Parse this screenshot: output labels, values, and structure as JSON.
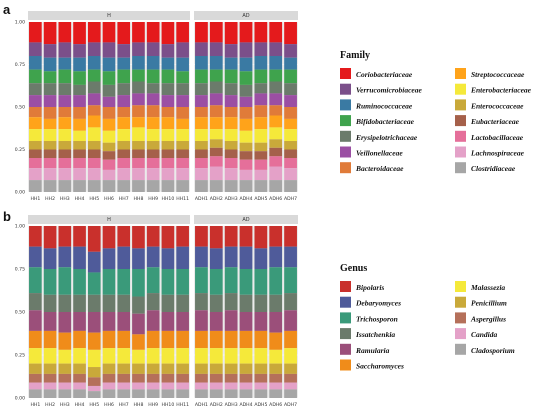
{
  "figure": {
    "panel_a": "a",
    "panel_b": "b"
  },
  "chart_data": [
    {
      "type": "bar",
      "stacked": true,
      "panel": "a",
      "facets": [
        "H",
        "AD"
      ],
      "categories": [
        "HH1",
        "HH2",
        "HH3",
        "HH4",
        "HH5",
        "HH6",
        "HH7",
        "HH8",
        "HH9",
        "HH10",
        "HH11",
        "ADH1",
        "ADH2",
        "ADH3",
        "ADH4",
        "ADH5",
        "ADH6",
        "ADH7"
      ],
      "facet_of": [
        "H",
        "H",
        "H",
        "H",
        "H",
        "H",
        "H",
        "H",
        "H",
        "H",
        "H",
        "AD",
        "AD",
        "AD",
        "AD",
        "AD",
        "AD",
        "AD"
      ],
      "ylim": [
        0,
        1
      ],
      "yticks": [
        "0.00",
        "0.25",
        "0.50",
        "0.75",
        "1.00"
      ],
      "legend_title": "Family",
      "legend_position": "right",
      "series": [
        {
          "name": "Coriobacteriaceae",
          "color": "#e41a1c",
          "values": [
            0.12,
            0.13,
            0.12,
            0.13,
            0.12,
            0.12,
            0.13,
            0.12,
            0.12,
            0.13,
            0.12,
            0.12,
            0.12,
            0.13,
            0.12,
            0.12,
            0.12,
            0.13
          ]
        },
        {
          "name": "Verrucomicrobiaceae",
          "color": "#7b4f8a",
          "values": [
            0.08,
            0.08,
            0.09,
            0.08,
            0.08,
            0.09,
            0.08,
            0.08,
            0.08,
            0.08,
            0.09,
            0.08,
            0.08,
            0.08,
            0.09,
            0.08,
            0.08,
            0.08
          ]
        },
        {
          "name": "Ruminococcaceae",
          "color": "#3a7aa3",
          "values": [
            0.08,
            0.08,
            0.07,
            0.08,
            0.08,
            0.08,
            0.07,
            0.08,
            0.08,
            0.07,
            0.08,
            0.08,
            0.08,
            0.07,
            0.08,
            0.08,
            0.08,
            0.07
          ]
        },
        {
          "name": "Bifidobacteriaceae",
          "color": "#3fa34d",
          "values": [
            0.08,
            0.07,
            0.08,
            0.08,
            0.07,
            0.08,
            0.08,
            0.07,
            0.08,
            0.08,
            0.07,
            0.08,
            0.07,
            0.08,
            0.08,
            0.08,
            0.07,
            0.08
          ]
        },
        {
          "name": "Erysipelotrichaceae",
          "color": "#6b7b6b",
          "values": [
            0.07,
            0.07,
            0.07,
            0.06,
            0.07,
            0.07,
            0.07,
            0.07,
            0.06,
            0.07,
            0.07,
            0.07,
            0.07,
            0.07,
            0.07,
            0.06,
            0.07,
            0.07
          ]
        },
        {
          "name": "Veillonellaceae",
          "color": "#9b4fa3",
          "values": [
            0.07,
            0.07,
            0.07,
            0.07,
            0.07,
            0.06,
            0.07,
            0.07,
            0.07,
            0.07,
            0.07,
            0.07,
            0.07,
            0.07,
            0.06,
            0.07,
            0.07,
            0.07
          ]
        },
        {
          "name": "Bacteroidaceae",
          "color": "#e07b39",
          "values": [
            0.06,
            0.07,
            0.06,
            0.07,
            0.06,
            0.07,
            0.06,
            0.07,
            0.07,
            0.06,
            0.07,
            0.06,
            0.07,
            0.06,
            0.07,
            0.07,
            0.06,
            0.07
          ]
        },
        {
          "name": "Streptococcaceae",
          "color": "#ffa31a",
          "values": [
            0.07,
            0.06,
            0.07,
            0.07,
            0.07,
            0.07,
            0.07,
            0.06,
            0.07,
            0.07,
            0.06,
            0.07,
            0.07,
            0.07,
            0.07,
            0.07,
            0.07,
            0.06
          ]
        },
        {
          "name": "Enterobacteriaceae",
          "color": "#f5e93a",
          "values": [
            0.07,
            0.07,
            0.07,
            0.06,
            0.08,
            0.07,
            0.07,
            0.08,
            0.07,
            0.07,
            0.07,
            0.07,
            0.06,
            0.07,
            0.07,
            0.08,
            0.07,
            0.07
          ]
        },
        {
          "name": "Enterococcaceae",
          "color": "#c9a93a",
          "values": [
            0.05,
            0.05,
            0.05,
            0.05,
            0.05,
            0.05,
            0.05,
            0.05,
            0.05,
            0.05,
            0.05,
            0.05,
            0.05,
            0.05,
            0.05,
            0.05,
            0.05,
            0.05
          ]
        },
        {
          "name": "Eubacteriaceae",
          "color": "#a5604a",
          "values": [
            0.05,
            0.05,
            0.05,
            0.05,
            0.05,
            0.05,
            0.05,
            0.05,
            0.05,
            0.05,
            0.05,
            0.05,
            0.05,
            0.05,
            0.05,
            0.05,
            0.05,
            0.05
          ]
        },
        {
          "name": "Lactobacillaceae",
          "color": "#e56f9a",
          "values": [
            0.06,
            0.06,
            0.06,
            0.06,
            0.06,
            0.06,
            0.06,
            0.06,
            0.06,
            0.06,
            0.06,
            0.06,
            0.06,
            0.06,
            0.06,
            0.06,
            0.06,
            0.06
          ]
        },
        {
          "name": "Lachnospiraceae",
          "color": "#e4a1c8",
          "values": [
            0.07,
            0.07,
            0.07,
            0.07,
            0.07,
            0.06,
            0.07,
            0.07,
            0.07,
            0.07,
            0.07,
            0.07,
            0.08,
            0.07,
            0.06,
            0.06,
            0.08,
            0.07
          ]
        },
        {
          "name": "Clostridiaceae",
          "color": "#a6a6a6",
          "values": [
            0.07,
            0.07,
            0.07,
            0.07,
            0.07,
            0.07,
            0.07,
            0.07,
            0.07,
            0.07,
            0.07,
            0.07,
            0.07,
            0.07,
            0.07,
            0.07,
            0.07,
            0.07
          ]
        }
      ]
    },
    {
      "type": "bar",
      "stacked": true,
      "panel": "b",
      "facets": [
        "H",
        "AD"
      ],
      "categories": [
        "HH1",
        "HH2",
        "HH3",
        "HH4",
        "HH5",
        "HH6",
        "HH7",
        "HH8",
        "HH9",
        "HH10",
        "HH11",
        "ADH1",
        "ADH2",
        "ADH3",
        "ADH4",
        "ADH5",
        "ADH6",
        "ADH7"
      ],
      "facet_of": [
        "H",
        "H",
        "H",
        "H",
        "H",
        "H",
        "H",
        "H",
        "H",
        "H",
        "H",
        "AD",
        "AD",
        "AD",
        "AD",
        "AD",
        "AD",
        "AD"
      ],
      "ylim": [
        0,
        1
      ],
      "yticks": [
        "0.00",
        "0.25",
        "0.50",
        "0.75",
        "1.00"
      ],
      "legend_title": "Genus",
      "legend_position": "right",
      "series": [
        {
          "name": "Bipolaris",
          "color": "#c9302c",
          "values": [
            0.12,
            0.13,
            0.12,
            0.12,
            0.15,
            0.13,
            0.12,
            0.13,
            0.12,
            0.13,
            0.12,
            0.12,
            0.13,
            0.12,
            0.12,
            0.13,
            0.12,
            0.12
          ]
        },
        {
          "name": "Debaryomyces",
          "color": "#4f5b9a",
          "values": [
            0.12,
            0.12,
            0.12,
            0.13,
            0.12,
            0.12,
            0.13,
            0.12,
            0.12,
            0.12,
            0.13,
            0.12,
            0.12,
            0.12,
            0.13,
            0.12,
            0.12,
            0.12
          ]
        },
        {
          "name": "Trichosporon",
          "color": "#3a9a7a",
          "values": [
            0.15,
            0.15,
            0.16,
            0.15,
            0.13,
            0.15,
            0.15,
            0.16,
            0.15,
            0.15,
            0.15,
            0.15,
            0.15,
            0.15,
            0.15,
            0.15,
            0.16,
            0.15
          ]
        },
        {
          "name": "Issatchenkia",
          "color": "#6b7b6b",
          "values": [
            0.1,
            0.1,
            0.1,
            0.1,
            0.1,
            0.1,
            0.1,
            0.1,
            0.1,
            0.1,
            0.1,
            0.1,
            0.1,
            0.1,
            0.1,
            0.1,
            0.1,
            0.1
          ]
        },
        {
          "name": "Ramularia",
          "color": "#9b4f7a",
          "values": [
            0.12,
            0.11,
            0.12,
            0.11,
            0.12,
            0.11,
            0.11,
            0.12,
            0.12,
            0.11,
            0.11,
            0.12,
            0.11,
            0.12,
            0.11,
            0.11,
            0.12,
            0.12
          ]
        },
        {
          "name": "Saccharomyces",
          "color": "#f08c1a",
          "values": [
            0.1,
            0.1,
            0.1,
            0.1,
            0.1,
            0.1,
            0.1,
            0.09,
            0.1,
            0.1,
            0.1,
            0.1,
            0.1,
            0.1,
            0.1,
            0.1,
            0.1,
            0.1
          ]
        },
        {
          "name": "Malassezia",
          "color": "#f5e93a",
          "values": [
            0.09,
            0.09,
            0.08,
            0.09,
            0.1,
            0.09,
            0.09,
            0.08,
            0.09,
            0.09,
            0.09,
            0.09,
            0.09,
            0.09,
            0.09,
            0.09,
            0.08,
            0.09
          ]
        },
        {
          "name": "Penicillium",
          "color": "#c9a93a",
          "values": [
            0.06,
            0.06,
            0.06,
            0.06,
            0.06,
            0.06,
            0.06,
            0.06,
            0.06,
            0.06,
            0.06,
            0.06,
            0.06,
            0.06,
            0.06,
            0.06,
            0.06,
            0.06
          ]
        },
        {
          "name": "Aspergillus",
          "color": "#b5705a",
          "values": [
            0.05,
            0.05,
            0.05,
            0.05,
            0.05,
            0.05,
            0.05,
            0.05,
            0.05,
            0.05,
            0.05,
            0.05,
            0.05,
            0.05,
            0.05,
            0.05,
            0.05,
            0.05
          ]
        },
        {
          "name": "Candida",
          "color": "#e4a1c8",
          "values": [
            0.04,
            0.04,
            0.04,
            0.04,
            0.03,
            0.04,
            0.04,
            0.04,
            0.04,
            0.04,
            0.04,
            0.04,
            0.04,
            0.04,
            0.04,
            0.04,
            0.04,
            0.04
          ]
        },
        {
          "name": "Cladosporium",
          "color": "#a6a6a6",
          "values": [
            0.05,
            0.05,
            0.05,
            0.05,
            0.04,
            0.05,
            0.05,
            0.05,
            0.05,
            0.05,
            0.05,
            0.05,
            0.05,
            0.05,
            0.05,
            0.05,
            0.05,
            0.05
          ]
        }
      ]
    }
  ]
}
